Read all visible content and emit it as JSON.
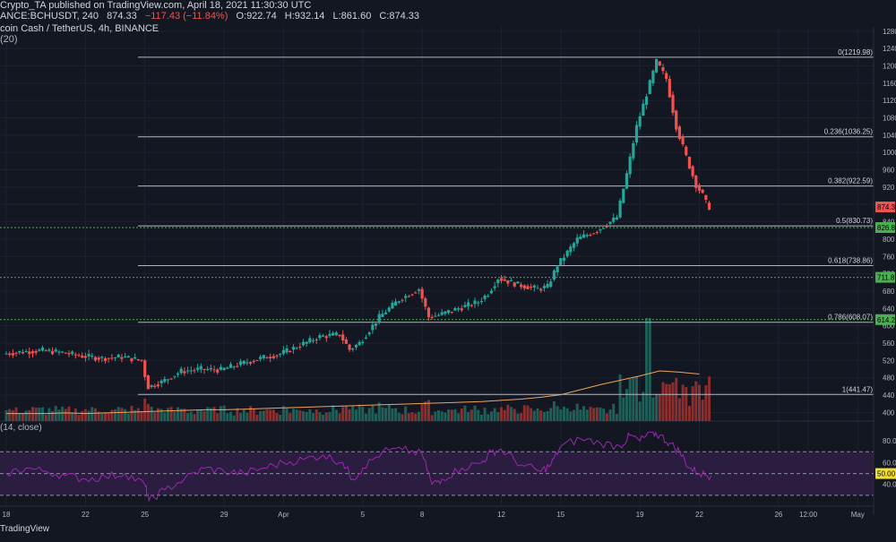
{
  "header": {
    "published": "Crypto_TA published on TradingView.com, April 18, 2021 11:30:30 UTC",
    "symbol": "ANCE:BCHUSDT, 240",
    "last": "874.33",
    "change": "−117.43 (−11.84%)",
    "open": "O:922.74",
    "high": "H:932.14",
    "low": "L:861.60",
    "close": "C:874.33",
    "instrument": "coin Cash / TetherUS, 4h, BINANCE",
    "ma_label": "(20)"
  },
  "rsi_label": "(14, close)",
  "footer": "TradingView",
  "colors": {
    "bg": "#131722",
    "up": "#26a69a",
    "down": "#ef5350",
    "fib": "#b2b5be",
    "rsi": "#9c27b0",
    "ma": "#f0a35a",
    "green_tag": "#4caf50",
    "yellow_tag": "#f0e034"
  },
  "chart_data": {
    "type": "candlestick",
    "symbol": "BCHUSDT",
    "interval": "4h",
    "exchange": "BINANCE",
    "price_axis": {
      "ylim": [
        380,
        1290
      ],
      "ticks": [
        400,
        440,
        480,
        520,
        560,
        600,
        640,
        680,
        720,
        760,
        800,
        840,
        880,
        920,
        960,
        1000,
        1040,
        1080,
        1120,
        1160,
        1200,
        1240,
        1280
      ]
    },
    "x_ticks": [
      {
        "label": "18",
        "day": 0
      },
      {
        "label": "22",
        "day": 4
      },
      {
        "label": "25",
        "day": 7
      },
      {
        "label": "29",
        "day": 11
      },
      {
        "label": "Apr",
        "day": 14
      },
      {
        "label": "5",
        "day": 18
      },
      {
        "label": "8",
        "day": 21
      },
      {
        "label": "12",
        "day": 25
      },
      {
        "label": "15",
        "day": 28
      },
      {
        "label": "19",
        "day": 32
      },
      {
        "label": "22",
        "day": 35
      },
      {
        "label": "26",
        "day": 39
      },
      {
        "label": "12:00",
        "day": 40.5
      },
      {
        "label": "May",
        "day": 43
      },
      {
        "label": "12:00",
        "day": 45.5
      }
    ],
    "fib_levels": [
      {
        "label": "0(1219.98)",
        "value": 1219.98
      },
      {
        "label": "0.236(1036.25)",
        "value": 1036.25
      },
      {
        "label": "0.382(922.59)",
        "value": 922.59
      },
      {
        "label": "0.5(830.73)",
        "value": 830.73
      },
      {
        "label": "0.618(738.86)",
        "value": 738.86
      },
      {
        "label": "0.786(608.07)",
        "value": 608.07
      },
      {
        "label": "1(441.47)",
        "value": 441.47
      }
    ],
    "price_tags": [
      {
        "label": "874.3",
        "value": 874.33,
        "color": "#ef5350"
      },
      {
        "label": "826.8",
        "value": 826.8,
        "color": "#4caf50"
      },
      {
        "label": "711.8",
        "value": 711.8,
        "color": "#4caf50"
      },
      {
        "label": "614.2",
        "value": 614.2,
        "color": "#4caf50"
      }
    ],
    "support_levels": [
      826.8,
      711.8,
      614.2
    ],
    "price_path": [
      [
        0,
        535
      ],
      [
        1,
        540
      ],
      [
        2,
        543
      ],
      [
        3,
        538
      ],
      [
        4,
        530
      ],
      [
        5,
        525
      ],
      [
        6,
        528
      ],
      [
        7,
        520
      ],
      [
        7.3,
        458
      ],
      [
        8,
        470
      ],
      [
        9,
        495
      ],
      [
        10,
        500
      ],
      [
        11,
        498
      ],
      [
        12,
        512
      ],
      [
        13,
        525
      ],
      [
        14,
        535
      ],
      [
        15,
        555
      ],
      [
        16,
        575
      ],
      [
        17,
        580
      ],
      [
        17.5,
        545
      ],
      [
        18,
        560
      ],
      [
        19,
        620
      ],
      [
        20,
        660
      ],
      [
        21,
        685
      ],
      [
        21.5,
        620
      ],
      [
        22,
        625
      ],
      [
        23,
        640
      ],
      [
        24,
        655
      ],
      [
        24.5,
        675
      ],
      [
        25,
        710
      ],
      [
        26,
        695
      ],
      [
        27,
        685
      ],
      [
        27.5,
        690
      ],
      [
        28,
        740
      ],
      [
        29,
        800
      ],
      [
        30,
        820
      ],
      [
        31,
        850
      ],
      [
        31.5,
        950
      ],
      [
        32,
        1060
      ],
      [
        32.6,
        1150
      ],
      [
        33,
        1210
      ],
      [
        33.5,
        1170
      ],
      [
        34,
        1060
      ],
      [
        34.5,
        990
      ],
      [
        35,
        925
      ],
      [
        35.3,
        905
      ],
      [
        35.6,
        874
      ]
    ],
    "rsi": {
      "range": [
        20,
        90
      ],
      "ticks": [
        40,
        50,
        60,
        80
      ],
      "marker": {
        "label": "50.00",
        "value": 50
      },
      "bands": [
        30,
        50,
        70
      ],
      "values": [
        [
          0,
          50
        ],
        [
          1,
          55
        ],
        [
          2,
          52
        ],
        [
          3,
          48
        ],
        [
          4,
          45
        ],
        [
          5,
          47
        ],
        [
          6,
          50
        ],
        [
          7,
          40
        ],
        [
          7.2,
          25
        ],
        [
          8,
          35
        ],
        [
          9,
          45
        ],
        [
          10,
          55
        ],
        [
          11,
          52
        ],
        [
          12,
          50
        ],
        [
          13,
          55
        ],
        [
          14,
          60
        ],
        [
          15,
          63
        ],
        [
          16,
          67
        ],
        [
          17,
          60
        ],
        [
          17.5,
          45
        ],
        [
          18,
          55
        ],
        [
          19,
          70
        ],
        [
          20,
          72
        ],
        [
          21,
          68
        ],
        [
          21.5,
          40
        ],
        [
          22,
          45
        ],
        [
          23,
          55
        ],
        [
          24,
          60
        ],
        [
          24.5,
          70
        ],
        [
          25,
          72
        ],
        [
          26,
          58
        ],
        [
          27,
          52
        ],
        [
          27.5,
          58
        ],
        [
          28,
          75
        ],
        [
          29,
          82
        ],
        [
          30,
          78
        ],
        [
          31,
          75
        ],
        [
          31.5,
          85
        ],
        [
          32,
          80
        ],
        [
          32.6,
          88
        ],
        [
          33,
          85
        ],
        [
          33.5,
          78
        ],
        [
          34,
          70
        ],
        [
          34.5,
          55
        ],
        [
          35,
          50
        ],
        [
          35.6,
          48
        ]
      ]
    },
    "volume": {
      "ylim": [
        0,
        100
      ],
      "ma_values": [
        12,
        12,
        12,
        13,
        12,
        13,
        14,
        15,
        16,
        17,
        18,
        18,
        19,
        20,
        21,
        22,
        23,
        24,
        25,
        26,
        27,
        28,
        29,
        30,
        31,
        33,
        35,
        38,
        42,
        50,
        58,
        65,
        72,
        80,
        78,
        75
      ]
    }
  }
}
